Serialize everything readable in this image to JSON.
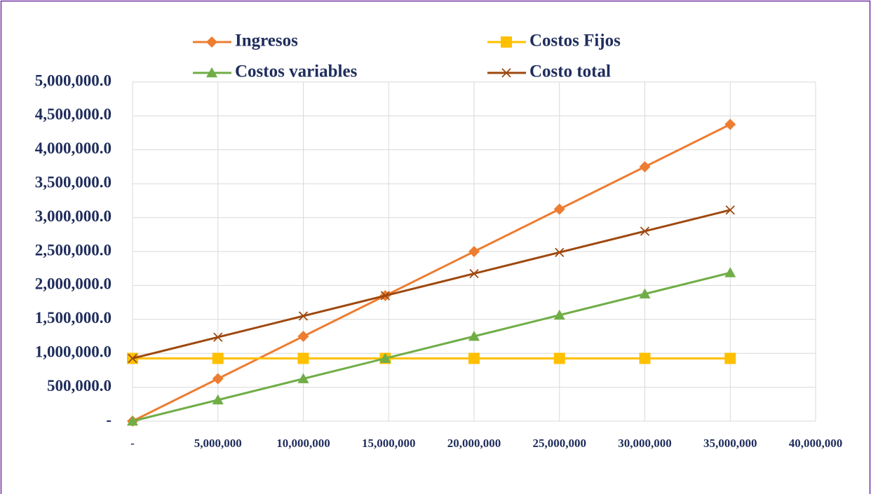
{
  "chart_data": {
    "type": "line",
    "x": [
      0,
      5000000,
      10000000,
      14800000,
      20000000,
      25000000,
      30000000,
      35000000
    ],
    "series": [
      {
        "name": "Ingresos",
        "color": "#ed7d31",
        "marker": "diamond",
        "values": [
          0,
          625000,
          1250000,
          1850000,
          2500000,
          3125000,
          3750000,
          4375000
        ]
      },
      {
        "name": "Costos Fijos",
        "color": "#ffc000",
        "marker": "square",
        "values": [
          925000,
          925000,
          925000,
          925000,
          925000,
          925000,
          925000,
          925000
        ]
      },
      {
        "name": "Costos variables",
        "color": "#70ad47",
        "marker": "triangle",
        "values": [
          0,
          312500,
          625000,
          925000,
          1250000,
          1562500,
          1875000,
          2187500
        ]
      },
      {
        "name": "Costo total",
        "color": "#9e480e",
        "marker": "x",
        "values": [
          925000,
          1237500,
          1550000,
          1850000,
          2175000,
          2487500,
          2800000,
          3112500
        ]
      }
    ],
    "xlim": [
      0,
      40000000
    ],
    "xticks": [
      {
        "value": 0,
        "label": "-"
      },
      {
        "value": 5000000,
        "label": "5,000,000"
      },
      {
        "value": 10000000,
        "label": "10,000,000"
      },
      {
        "value": 15000000,
        "label": "15,000,000"
      },
      {
        "value": 20000000,
        "label": "20,000,000"
      },
      {
        "value": 25000000,
        "label": "25,000,000"
      },
      {
        "value": 30000000,
        "label": "30,000,000"
      },
      {
        "value": 35000000,
        "label": "35,000,000"
      },
      {
        "value": 40000000,
        "label": "40,000,000"
      }
    ],
    "ylim": [
      0,
      5000000
    ],
    "yticks": [
      {
        "value": 0,
        "label": "-"
      },
      {
        "value": 500000,
        "label": "500,000.0"
      },
      {
        "value": 1000000,
        "label": "1,000,000.0"
      },
      {
        "value": 1500000,
        "label": "1,500,000.0"
      },
      {
        "value": 2000000,
        "label": "2,000,000.0"
      },
      {
        "value": 2500000,
        "label": "2,500,000.0"
      },
      {
        "value": 3000000,
        "label": "3,000,000.0"
      },
      {
        "value": 3500000,
        "label": "3,500,000.0"
      },
      {
        "value": 4000000,
        "label": "4,000,000.0"
      },
      {
        "value": 4500000,
        "label": "4,500,000.0"
      },
      {
        "value": 5000000,
        "label": "5,000,000.0"
      }
    ],
    "grid": true,
    "legend": "top"
  }
}
